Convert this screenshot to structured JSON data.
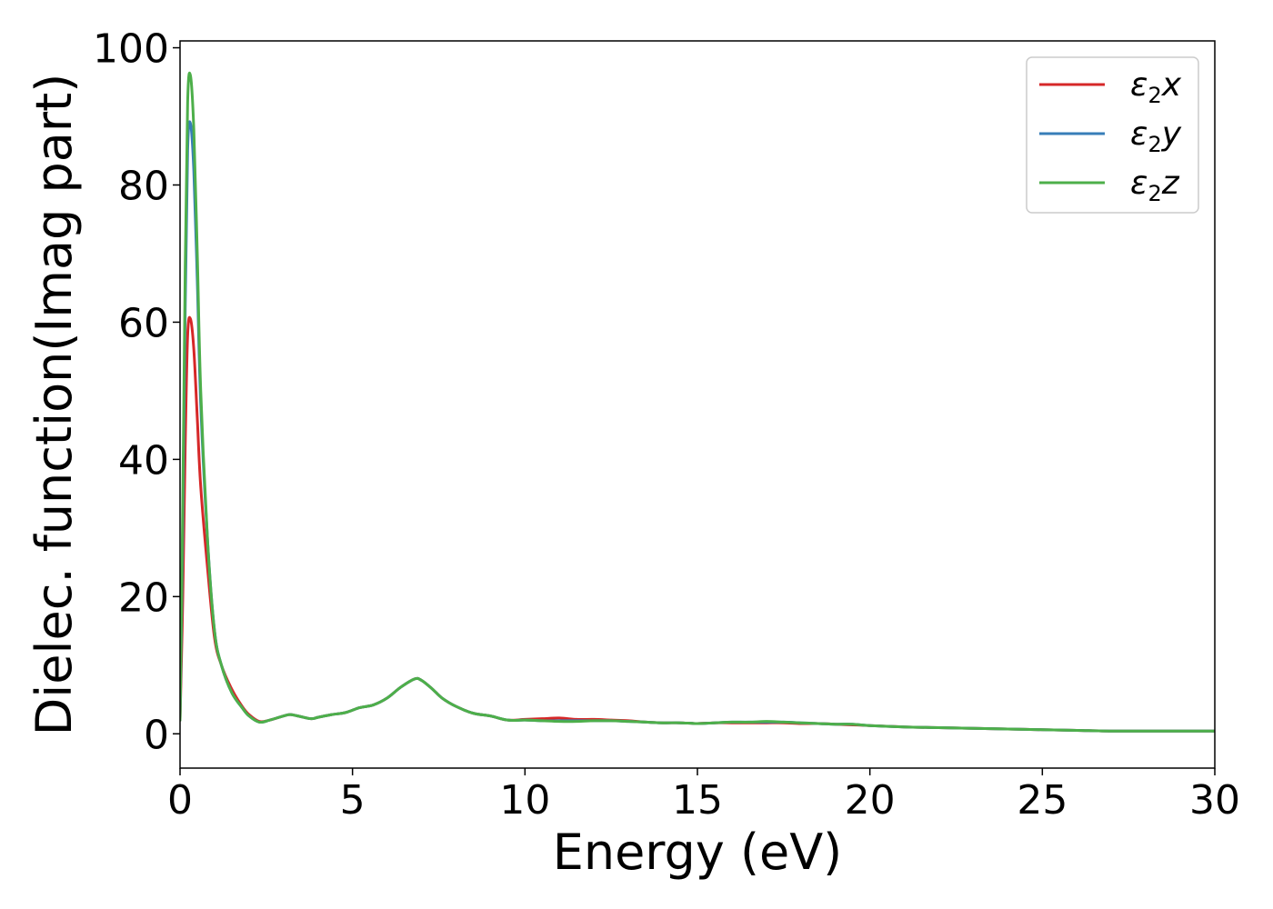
{
  "chart_data": {
    "type": "line",
    "title": "",
    "xlabel": "Energy (eV)",
    "ylabel": "Dielec. function(Imag part)",
    "xlim": [
      0,
      30
    ],
    "ylim": [
      -5,
      101
    ],
    "xticks": [
      "0",
      "5",
      "10",
      "15",
      "20",
      "25",
      "30"
    ],
    "yticks": [
      "0",
      "20",
      "40",
      "60",
      "80",
      "100"
    ],
    "grid": false,
    "legend_position": "top-right",
    "series": [
      {
        "name": "ε2x",
        "name_base": "ε",
        "name_sub": "2",
        "name_var": "x",
        "color": "#d62728",
        "x": [
          0,
          0.08,
          0.15,
          0.22,
          0.3,
          0.4,
          0.5,
          0.6,
          0.8,
          1.0,
          1.2,
          1.5,
          1.8,
          2.0,
          2.3,
          2.6,
          3.0,
          3.2,
          3.5,
          3.8,
          4.0,
          4.4,
          4.8,
          5.2,
          5.6,
          6.0,
          6.4,
          6.8,
          7.0,
          7.3,
          7.6,
          8.0,
          8.5,
          9.0,
          9.5,
          10.0,
          10.5,
          11.0,
          11.5,
          12.0,
          12.5,
          13.0,
          13.5,
          14.0,
          14.5,
          15.0,
          15.5,
          16.0,
          16.5,
          17.0,
          17.5,
          18.0,
          18.5,
          19.0,
          19.5,
          20.0,
          21.0,
          22.0,
          23.0,
          24.0,
          25.0,
          26.0,
          27.0,
          28.0,
          29.0,
          30.0
        ],
        "y": [
          2,
          20,
          42,
          58,
          60.5,
          56,
          46,
          36,
          24,
          14,
          10,
          6.5,
          4,
          2.8,
          1.8,
          2,
          2.6,
          2.8,
          2.5,
          2.2,
          2.4,
          2.8,
          3.1,
          3.8,
          4.2,
          5.2,
          6.8,
          8.0,
          7.8,
          6.6,
          5.2,
          4.0,
          3.0,
          2.6,
          2.0,
          2.1,
          2.2,
          2.3,
          2.1,
          2.1,
          2.0,
          1.9,
          1.7,
          1.6,
          1.6,
          1.5,
          1.6,
          1.6,
          1.6,
          1.6,
          1.6,
          1.5,
          1.5,
          1.4,
          1.3,
          1.2,
          1.0,
          0.9,
          0.8,
          0.7,
          0.6,
          0.5,
          0.4,
          0.4,
          0.4,
          0.4
        ]
      },
      {
        "name": "ε2y",
        "name_base": "ε",
        "name_sub": "2",
        "name_var": "y",
        "color": "#377eb8",
        "x": [
          0,
          0.08,
          0.15,
          0.22,
          0.3,
          0.4,
          0.5,
          0.6,
          0.8,
          1.0,
          1.2,
          1.5,
          1.8,
          2.0,
          2.3,
          2.6,
          3.0,
          3.2,
          3.5,
          3.8,
          4.0,
          4.4,
          4.8,
          5.2,
          5.6,
          6.0,
          6.4,
          6.8,
          7.0,
          7.3,
          7.6,
          8.0,
          8.5,
          9.0,
          9.5,
          10.0,
          10.5,
          11.0,
          11.5,
          12.0,
          12.5,
          13.0,
          13.5,
          14.0,
          14.5,
          15.0,
          15.5,
          16.0,
          16.5,
          17.0,
          17.5,
          18.0,
          18.5,
          19.0,
          19.5,
          20.0,
          21.0,
          22.0,
          23.0,
          24.0,
          25.0,
          26.0,
          27.0,
          28.0,
          29.0,
          30.0
        ],
        "y": [
          2,
          30,
          62,
          85,
          89,
          82,
          66,
          48,
          28,
          15,
          10,
          6,
          3.8,
          2.6,
          1.7,
          2,
          2.6,
          2.8,
          2.5,
          2.2,
          2.4,
          2.8,
          3.1,
          3.8,
          4.2,
          5.2,
          6.8,
          8.0,
          7.8,
          6.6,
          5.2,
          4.0,
          3.0,
          2.6,
          2.0,
          2.0,
          1.9,
          1.9,
          1.9,
          1.9,
          1.9,
          1.8,
          1.7,
          1.6,
          1.6,
          1.5,
          1.6,
          1.7,
          1.7,
          1.7,
          1.7,
          1.6,
          1.5,
          1.4,
          1.4,
          1.2,
          1.0,
          0.9,
          0.8,
          0.7,
          0.6,
          0.5,
          0.4,
          0.4,
          0.4,
          0.4
        ]
      },
      {
        "name": "ε2z",
        "name_base": "ε",
        "name_sub": "2",
        "name_var": "z",
        "color": "#4daf4a",
        "x": [
          0,
          0.08,
          0.15,
          0.22,
          0.3,
          0.4,
          0.5,
          0.6,
          0.8,
          1.0,
          1.2,
          1.5,
          1.8,
          2.0,
          2.3,
          2.6,
          3.0,
          3.2,
          3.5,
          3.8,
          4.0,
          4.4,
          4.8,
          5.2,
          5.6,
          6.0,
          6.4,
          6.8,
          7.0,
          7.3,
          7.6,
          8.0,
          8.5,
          9.0,
          9.5,
          10.0,
          10.5,
          11.0,
          11.5,
          12.0,
          12.5,
          13.0,
          13.5,
          14.0,
          14.5,
          15.0,
          15.5,
          16.0,
          16.5,
          17.0,
          17.5,
          18.0,
          18.5,
          19.0,
          19.5,
          20.0,
          21.0,
          22.0,
          23.0,
          24.0,
          25.0,
          26.0,
          27.0,
          28.0,
          29.0,
          30.0
        ],
        "y": [
          2,
          34,
          68,
          92,
          96,
          88,
          70,
          50,
          28,
          15,
          10,
          6,
          3.8,
          2.6,
          1.7,
          2,
          2.6,
          2.8,
          2.5,
          2.2,
          2.4,
          2.8,
          3.1,
          3.8,
          4.2,
          5.2,
          6.8,
          8.0,
          7.8,
          6.6,
          5.2,
          4.0,
          3.0,
          2.6,
          2.0,
          2.0,
          1.9,
          1.8,
          1.8,
          1.9,
          1.9,
          1.8,
          1.7,
          1.6,
          1.6,
          1.5,
          1.6,
          1.7,
          1.7,
          1.8,
          1.7,
          1.6,
          1.5,
          1.4,
          1.4,
          1.2,
          1.0,
          0.9,
          0.8,
          0.7,
          0.6,
          0.5,
          0.4,
          0.4,
          0.4,
          0.4
        ]
      }
    ]
  }
}
